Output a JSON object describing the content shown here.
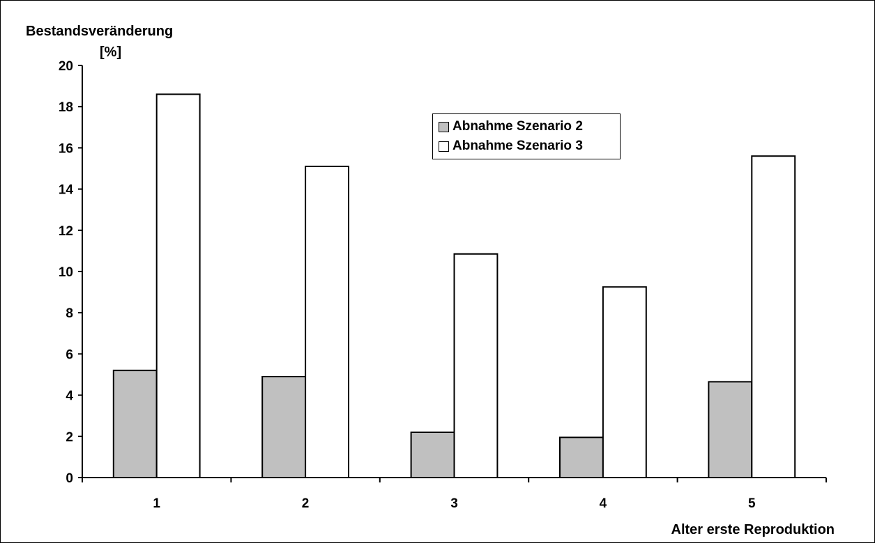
{
  "chart_data": {
    "type": "bar",
    "ylabel": "Bestandsveränderung",
    "yunit": "[%]",
    "xlabel": "Alter erste Reproduktion",
    "categories": [
      "1",
      "2",
      "3",
      "4",
      "5"
    ],
    "ylim": [
      0,
      20
    ],
    "yticks": [
      0,
      2,
      4,
      6,
      8,
      10,
      12,
      14,
      16,
      18,
      20
    ],
    "grid": false,
    "legend_position": "top-center",
    "series": [
      {
        "name": "Abnahme Szenario 2",
        "color": "#c0c0c0",
        "values": [
          5.2,
          4.9,
          2.2,
          1.95,
          4.65
        ]
      },
      {
        "name": "Abnahme Szenario 3",
        "color": "#ffffff",
        "values": [
          18.6,
          15.1,
          10.85,
          9.25,
          15.6
        ]
      }
    ]
  }
}
